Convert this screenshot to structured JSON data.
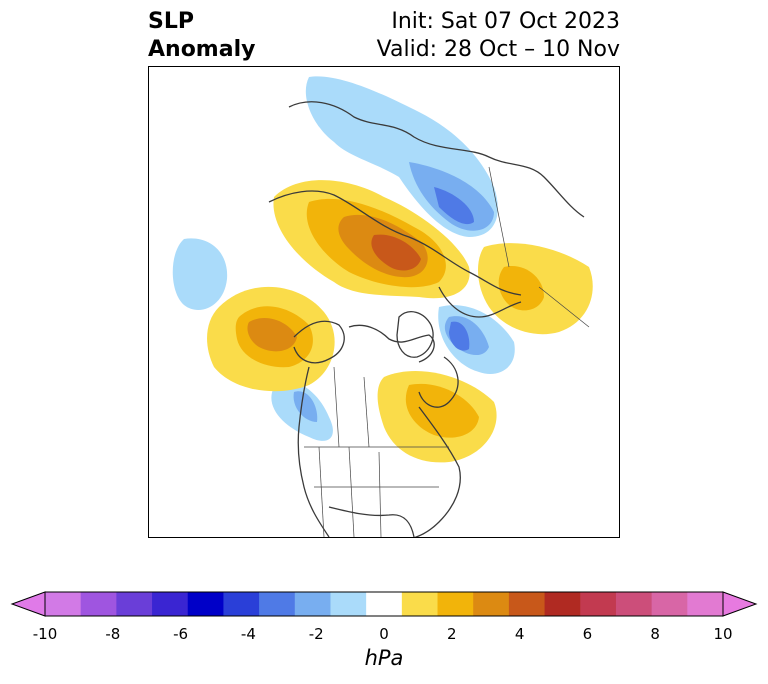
{
  "title": {
    "variable_line1": "SLP",
    "variable_line2": "Anomaly",
    "init": "Init: Sat 07 Oct 2023",
    "valid": "Valid: 28 Oct – 10 Nov"
  },
  "colorbar": {
    "unit": "hPa",
    "extend": "both",
    "ticks": [
      "-10",
      "-8",
      "-6",
      "-4",
      "-2",
      "0",
      "2",
      "4",
      "6",
      "8",
      "10"
    ],
    "levels": [
      -10,
      -9,
      -8,
      -7,
      -6,
      -5,
      -4,
      -3,
      -2,
      -1,
      1,
      2,
      3,
      4,
      5,
      6,
      7,
      8,
      9,
      10
    ],
    "colors": {
      "min_extend": "#e07ae8",
      "bins": [
        "#d27ae6",
        "#9f55e0",
        "#6a3ed8",
        "#3a25d2",
        "#0000c8",
        "#2a3fd8",
        "#4f7ae6",
        "#78aef0",
        "#aadbfa",
        "#ffffff",
        "#fadc4a",
        "#f2b40a",
        "#dc8a12",
        "#c8581a",
        "#b02a22",
        "#c23a50",
        "#cc4e7a",
        "#d866a6",
        "#e27ad2"
      ],
      "max_extend": "#e77ae0"
    }
  },
  "map": {
    "projection": "north-polar-stereographic",
    "region": "Northern Hemisphere (North America / Arctic / Eurasia)",
    "anomaly_colors": {
      "pos_1": "#fadc4a",
      "pos_2": "#f2b40a",
      "pos_3": "#dc8a12",
      "pos_4": "#c8581a",
      "neg_1": "#aadbfa",
      "neg_2": "#78aef0",
      "neg_3": "#4f7ae6"
    }
  }
}
